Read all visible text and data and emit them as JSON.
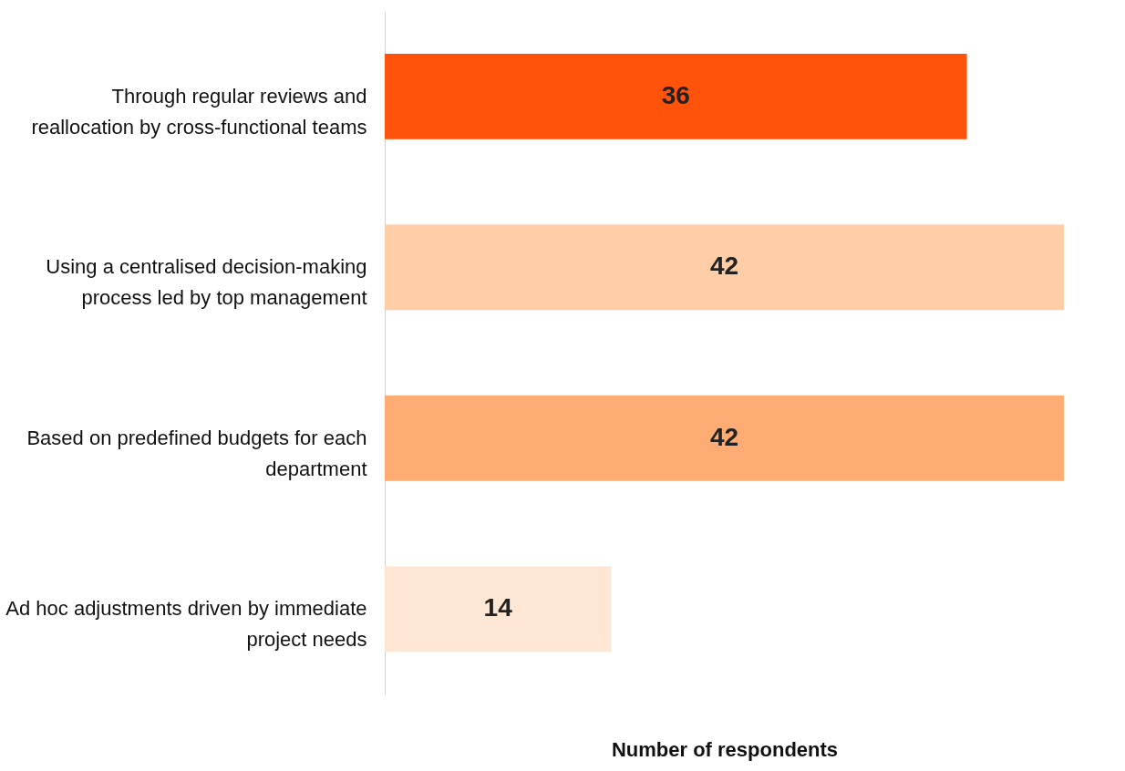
{
  "chart_data": {
    "type": "bar",
    "orientation": "horizontal",
    "xlabel": "Number of respondents",
    "categories": [
      "Through regular reviews and reallocation by cross-functional teams",
      "Using a centralised decision-making process led by top management",
      "Based on predefined budgets for each department",
      "Ad hoc adjustments driven by immediate project needs"
    ],
    "values": [
      36,
      42,
      42,
      14
    ],
    "colors": [
      "#ff520a",
      "#ffcda6",
      "#ffab74",
      "#fee6d4"
    ],
    "xlim": [
      0,
      42
    ],
    "data_labels": true,
    "grid": false,
    "tick_labels": "y"
  }
}
